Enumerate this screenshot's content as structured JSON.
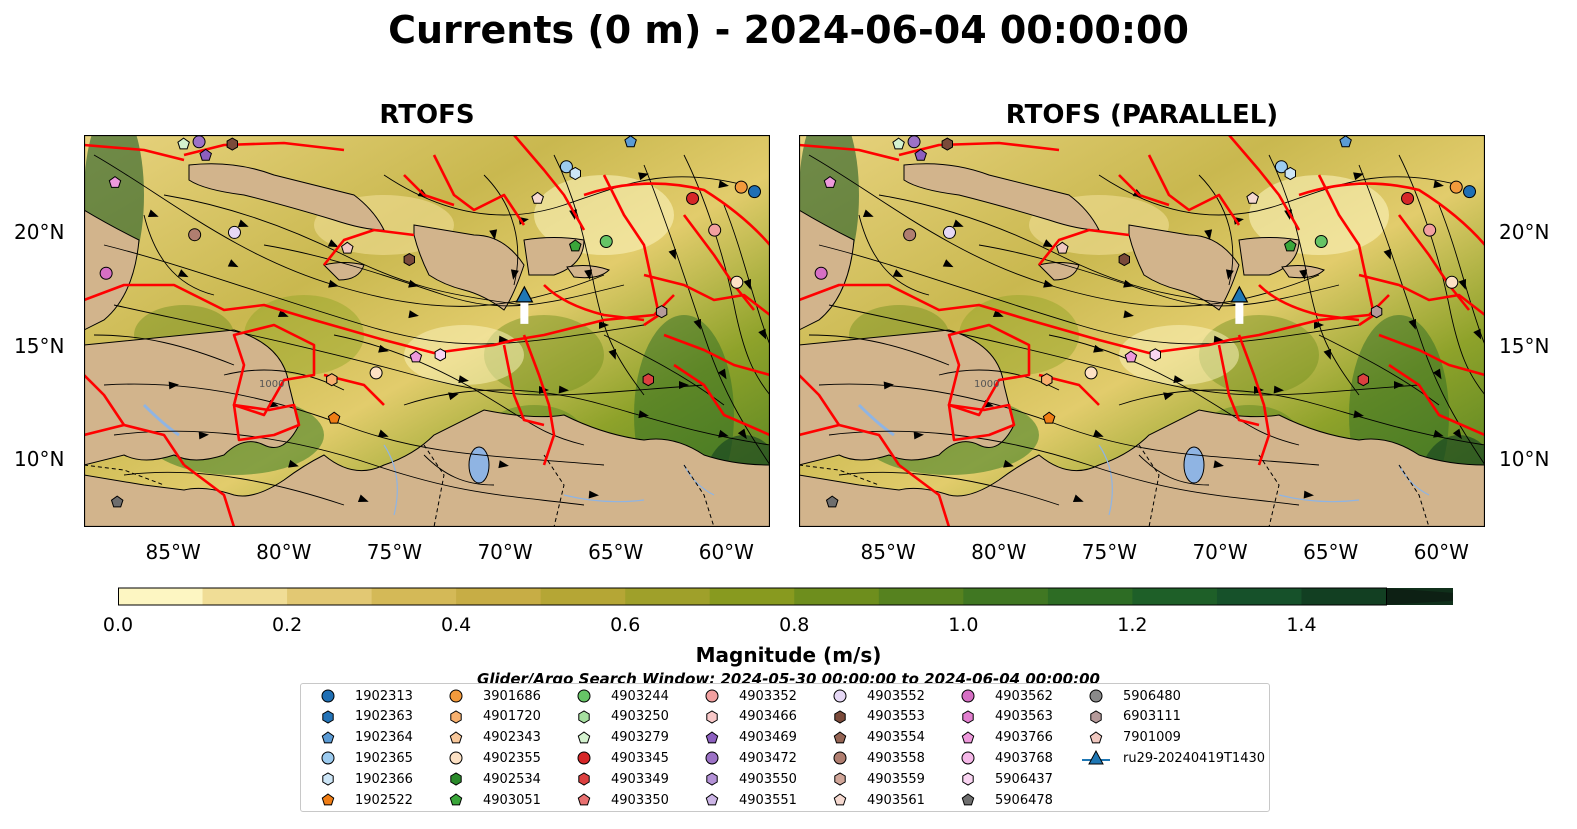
{
  "title": "Currents (0 m) - 2024-06-04 00:00:00",
  "panels": [
    {
      "title": "RTOFS"
    },
    {
      "title": "RTOFS (PARALLEL)"
    }
  ],
  "axes": {
    "lon_ticks": [
      "85°W",
      "80°W",
      "75°W",
      "70°W",
      "65°W",
      "60°W"
    ],
    "lat_ticks": [
      "20°N",
      "15°N",
      "10°N"
    ],
    "contour_label": "1000"
  },
  "colorbar": {
    "label": "Magnitude (m/s)",
    "ticks": [
      "0.0",
      "0.2",
      "0.4",
      "0.6",
      "0.8",
      "1.0",
      "1.2",
      "1.4"
    ],
    "colors": [
      "#fdf6c2",
      "#f0dd96",
      "#e2c873",
      "#d4b957",
      "#c7ad45",
      "#b5a635",
      "#9fa02a",
      "#889a1f",
      "#6e8e1d",
      "#56821f",
      "#407722",
      "#2d6c24",
      "#1e5f28",
      "#16512a",
      "#123f22",
      "#10301b",
      "#0d2014"
    ]
  },
  "search_window": "Glider/Argo Search Window: 2024-05-30 00:00:00 to 2024-06-04 00:00:00",
  "land_color": "#d2b48c",
  "boundary_color": "#ff0000",
  "legend": [
    {
      "label": "1902313",
      "color": "#1f6fb4",
      "shape": "circle"
    },
    {
      "label": "1902363",
      "color": "#2474b8",
      "shape": "hexagon"
    },
    {
      "label": "1902364",
      "color": "#5b9bd5",
      "shape": "pentagon"
    },
    {
      "label": "1902365",
      "color": "#9ccbef",
      "shape": "circle"
    },
    {
      "label": "1902366",
      "color": "#cde6f7",
      "shape": "hexagon"
    },
    {
      "label": "1902522",
      "color": "#f07d15",
      "shape": "pentagon"
    },
    {
      "label": "3901686",
      "color": "#f39a3c",
      "shape": "circle"
    },
    {
      "label": "4901720",
      "color": "#f7b06e",
      "shape": "hexagon"
    },
    {
      "label": "4902343",
      "color": "#f8c89b",
      "shape": "pentagon"
    },
    {
      "label": "4902355",
      "color": "#fde1c4",
      "shape": "circle"
    },
    {
      "label": "4902534",
      "color": "#2a8a2a",
      "shape": "hexagon"
    },
    {
      "label": "4903051",
      "color": "#3aa63a",
      "shape": "pentagon"
    },
    {
      "label": "4903244",
      "color": "#66c466",
      "shape": "circle"
    },
    {
      "label": "4903250",
      "color": "#a6e0a0",
      "shape": "hexagon"
    },
    {
      "label": "4903279",
      "color": "#d4f2cf",
      "shape": "pentagon"
    },
    {
      "label": "4903345",
      "color": "#d62728",
      "shape": "circle"
    },
    {
      "label": "4903349",
      "color": "#dc4040",
      "shape": "hexagon"
    },
    {
      "label": "4903350",
      "color": "#e87070",
      "shape": "pentagon"
    },
    {
      "label": "4903352",
      "color": "#f2a0a0",
      "shape": "circle"
    },
    {
      "label": "4903466",
      "color": "#f8c8c8",
      "shape": "hexagon"
    },
    {
      "label": "4903469",
      "color": "#8c5fbf",
      "shape": "pentagon"
    },
    {
      "label": "4903472",
      "color": "#9c72c6",
      "shape": "circle"
    },
    {
      "label": "4903550",
      "color": "#b391d6",
      "shape": "hexagon"
    },
    {
      "label": "4903551",
      "color": "#ccb5e6",
      "shape": "pentagon"
    },
    {
      "label": "4903552",
      "color": "#e6d8f5",
      "shape": "circle"
    },
    {
      "label": "4903553",
      "color": "#7a4a3a",
      "shape": "hexagon"
    },
    {
      "label": "4903554",
      "color": "#946454",
      "shape": "pentagon"
    },
    {
      "label": "4903558",
      "color": "#b07e70",
      "shape": "circle"
    },
    {
      "label": "4903559",
      "color": "#d1a699",
      "shape": "hexagon"
    },
    {
      "label": "4903561",
      "color": "#f5d9d0",
      "shape": "pentagon"
    },
    {
      "label": "4903562",
      "color": "#d66fc4",
      "shape": "circle"
    },
    {
      "label": "4903563",
      "color": "#e27fcf",
      "shape": "hexagon"
    },
    {
      "label": "4903766",
      "color": "#ee99dc",
      "shape": "pentagon"
    },
    {
      "label": "4903768",
      "color": "#f5b8e8",
      "shape": "circle"
    },
    {
      "label": "5906437",
      "color": "#fad5f2",
      "shape": "hexagon"
    },
    {
      "label": "5906478",
      "color": "#6e6e6e",
      "shape": "pentagon"
    },
    {
      "label": "5906480",
      "color": "#8a8a8a",
      "shape": "circle"
    },
    {
      "label": "6903111",
      "color": "#b59a9a",
      "shape": "hexagon"
    },
    {
      "label": "7901009",
      "color": "#f0c8c0",
      "shape": "pentagon"
    },
    {
      "label": "ru29-20240419T1430",
      "color": "#1f77b4",
      "shape": "triangle-line"
    }
  ]
}
